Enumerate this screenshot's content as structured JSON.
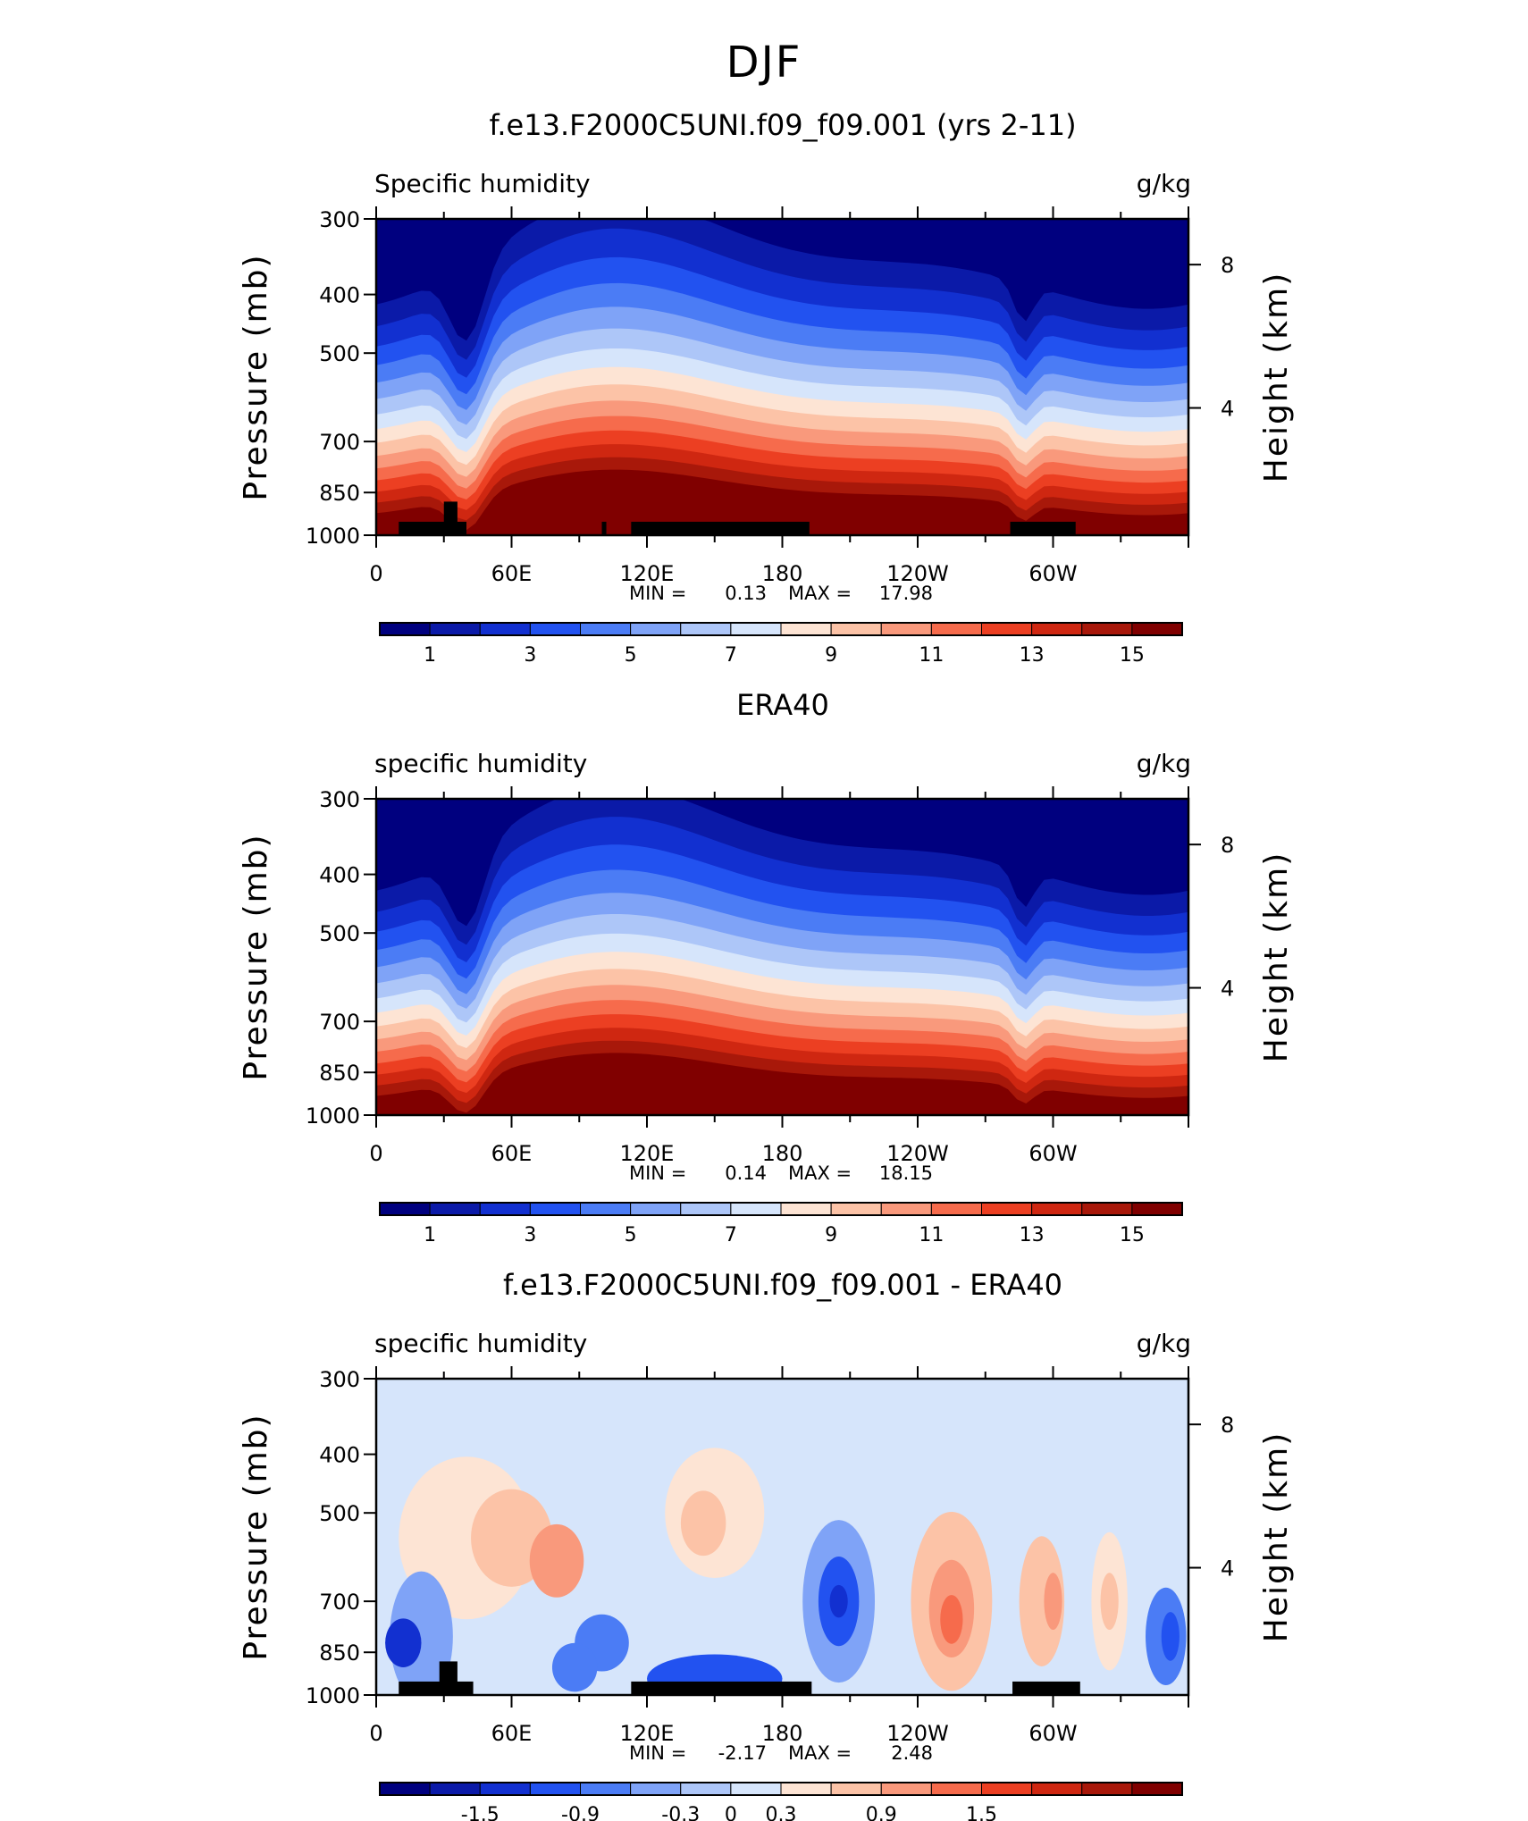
{
  "figure": {
    "supertitle": "DJF"
  },
  "axis_common": {
    "y_left_label": "Pressure (mb)",
    "y_right_label": "Height (km)",
    "y_ticks": [
      "300",
      "400",
      "500",
      "700",
      "850",
      "1000"
    ],
    "y_right_ticks": [
      "8",
      "4"
    ],
    "x_ticks": [
      "0",
      "60E",
      "120E",
      "180",
      "120W",
      "60W"
    ]
  },
  "chart_data": [
    {
      "type": "heatmap",
      "title": "f.e13.F2000C5UNI.f09_f09.001 (yrs 2-11)",
      "left_label": "Specific humidity",
      "right_label": "g/kg",
      "stats": {
        "min_label": "MIN =",
        "min": "0.13",
        "max_label": "MAX =",
        "max": "17.98"
      },
      "x_range": [
        0,
        360
      ],
      "y_range_mb": [
        300,
        1000
      ],
      "colorbar_labels": [
        "1",
        "3",
        "5",
        "7",
        "9",
        "11",
        "13",
        "15"
      ],
      "contour_levels": [
        0,
        1,
        2,
        3,
        4,
        5,
        6,
        7,
        8,
        9,
        10,
        11,
        12,
        13,
        14,
        15,
        16
      ],
      "colors": [
        "#00007f",
        "#0b1aa8",
        "#1230d0",
        "#2252f0",
        "#4b7cf5",
        "#7fa3f7",
        "#adc6f8",
        "#d6e5fb",
        "#fde4d4",
        "#fcc3a7",
        "#f9997c",
        "#f66b4c",
        "#ec3f22",
        "#cf2711",
        "#a8180a",
        "#800000"
      ]
    },
    {
      "type": "heatmap",
      "title": "ERA40",
      "left_label": "specific humidity",
      "right_label": "g/kg",
      "stats": {
        "min_label": "MIN =",
        "min": "0.14",
        "max_label": "MAX =",
        "max": "18.15"
      },
      "x_range": [
        0,
        360
      ],
      "y_range_mb": [
        300,
        1000
      ],
      "colorbar_labels": [
        "1",
        "3",
        "5",
        "7",
        "9",
        "11",
        "13",
        "15"
      ],
      "contour_levels": [
        0,
        1,
        2,
        3,
        4,
        5,
        6,
        7,
        8,
        9,
        10,
        11,
        12,
        13,
        14,
        15,
        16
      ],
      "colors": [
        "#00007f",
        "#0b1aa8",
        "#1230d0",
        "#2252f0",
        "#4b7cf5",
        "#7fa3f7",
        "#adc6f8",
        "#d6e5fb",
        "#fde4d4",
        "#fcc3a7",
        "#f9997c",
        "#f66b4c",
        "#ec3f22",
        "#cf2711",
        "#a8180a",
        "#800000"
      ]
    },
    {
      "type": "heatmap",
      "title": "f.e13.F2000C5UNI.f09_f09.001 - ERA40",
      "left_label": "specific humidity",
      "right_label": "g/kg",
      "stats": {
        "min_label": "MIN =",
        "min": "-2.17",
        "max_label": "MAX =",
        "max": "2.48"
      },
      "x_range": [
        0,
        360
      ],
      "y_range_mb": [
        300,
        1000
      ],
      "colorbar_labels": [
        "-1.5",
        "-0.9",
        "-0.3",
        "0",
        "0.3",
        "0.9",
        "1.5"
      ],
      "contour_levels": [
        -2.1,
        -1.8,
        -1.5,
        -1.2,
        -0.9,
        -0.6,
        -0.3,
        0,
        0.3,
        0.6,
        0.9,
        1.2,
        1.5,
        1.8,
        2.1
      ],
      "colors": [
        "#00007f",
        "#0b1aa8",
        "#1230d0",
        "#2252f0",
        "#4b7cf5",
        "#7fa3f7",
        "#adc6f8",
        "#d6e5fb",
        "#fde4d4",
        "#fcc3a7",
        "#f9997c",
        "#f66b4c",
        "#ec3f22",
        "#cf2711",
        "#a8180a",
        "#800000"
      ]
    }
  ]
}
